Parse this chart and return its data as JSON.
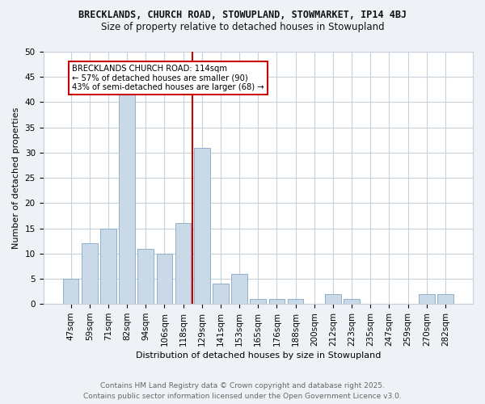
{
  "title_line1": "BRECKLANDS, CHURCH ROAD, STOWUPLAND, STOWMARKET, IP14 4BJ",
  "title_line2": "Size of property relative to detached houses in Stowupland",
  "xlabel": "Distribution of detached houses by size in Stowupland",
  "ylabel": "Number of detached properties",
  "categories": [
    "47sqm",
    "59sqm",
    "71sqm",
    "82sqm",
    "94sqm",
    "106sqm",
    "118sqm",
    "129sqm",
    "141sqm",
    "153sqm",
    "165sqm",
    "176sqm",
    "188sqm",
    "200sqm",
    "212sqm",
    "223sqm",
    "235sqm",
    "247sqm",
    "259sqm",
    "270sqm",
    "282sqm"
  ],
  "values": [
    5,
    12,
    15,
    42,
    11,
    10,
    16,
    31,
    4,
    6,
    1,
    1,
    1,
    0,
    2,
    1,
    0,
    0,
    0,
    2,
    2
  ],
  "bar_color": "#c9d9e8",
  "bar_edgecolor": "#8fb0cc",
  "vline_x": 6.5,
  "vline_color": "#cc0000",
  "annotation_text": "BRECKLANDS CHURCH ROAD: 114sqm\n← 57% of detached houses are smaller (90)\n43% of semi-detached houses are larger (68) →",
  "annotation_box_edgecolor": "#cc0000",
  "annotation_box_facecolor": "#ffffff",
  "ylim": [
    0,
    50
  ],
  "yticks": [
    0,
    5,
    10,
    15,
    20,
    25,
    30,
    35,
    40,
    45,
    50
  ],
  "footer_line1": "Contains HM Land Registry data © Crown copyright and database right 2025.",
  "footer_line2": "Contains public sector information licensed under the Open Government Licence v3.0.",
  "bg_color": "#eef2f7",
  "plot_bg_color": "#ffffff",
  "grid_color": "#c8d0da",
  "title_color": "#111111",
  "annot_fontsize": 7.2,
  "title1_fontsize": 8.5,
  "title2_fontsize": 8.5,
  "axis_label_fontsize": 8.0,
  "tick_fontsize": 7.5,
  "footer_fontsize": 6.5
}
